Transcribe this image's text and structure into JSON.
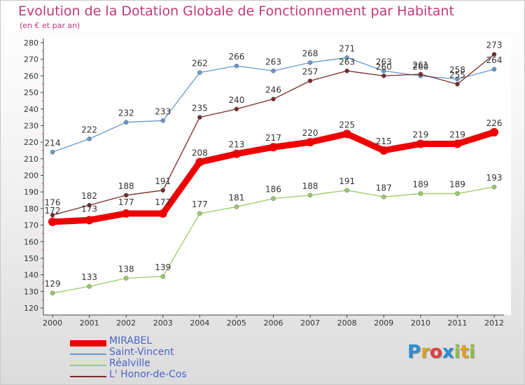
{
  "title": "Evolution de la Dotation Globale de Fonctionnement par Habitant",
  "subtitle": "(en € et par an)",
  "logo": {
    "letters": [
      "P",
      "r",
      "o",
      "x",
      "i",
      "t",
      "i"
    ],
    "colors": [
      "#2a8fd8",
      "#e0a020",
      "#e04040",
      "#2a8fd8",
      "#8fc040",
      "#e0a020",
      "#8fc040"
    ]
  },
  "chart_data": {
    "type": "line",
    "title": "Evolution de la Dotation Globale de Fonctionnement par Habitant",
    "ylabel": "(en € et par an)",
    "xlabel": "",
    "ylim": [
      120,
      280
    ],
    "yticks": [
      120,
      130,
      140,
      150,
      160,
      170,
      180,
      190,
      200,
      210,
      220,
      230,
      240,
      250,
      260,
      270,
      280
    ],
    "categories": [
      "2000",
      "2001",
      "2002",
      "2003",
      "2004",
      "2005",
      "2006",
      "2007",
      "2008",
      "2009",
      "2010",
      "2011",
      "2012"
    ],
    "series": [
      {
        "name": "MIRABEL",
        "color": "#ee0000",
        "values": [
          172,
          173,
          177,
          177,
          208,
          213,
          217,
          220,
          225,
          215,
          219,
          219,
          226
        ]
      },
      {
        "name": "Saint-Vincent",
        "color": "#6699cc",
        "values": [
          214,
          222,
          232,
          233,
          262,
          266,
          263,
          268,
          271,
          263,
          260,
          258,
          264
        ]
      },
      {
        "name": "Réalville",
        "color": "#99cc66",
        "values": [
          129,
          133,
          138,
          139,
          177,
          181,
          186,
          188,
          191,
          187,
          189,
          189,
          193
        ]
      },
      {
        "name": "L' Honor-de-Cos",
        "color": "#7a2a2a",
        "values": [
          176,
          182,
          188,
          191,
          235,
          240,
          246,
          257,
          263,
          260,
          261,
          255,
          273
        ]
      }
    ],
    "labels": {
      "Saint-Vincent": [
        "214",
        "222",
        "232",
        "233",
        "262",
        "266",
        "263",
        "268",
        "271",
        "263",
        "260",
        "258",
        "264"
      ],
      "L' Honor-de-Cos": [
        "176",
        "182",
        "188",
        "191",
        "235",
        "240",
        "246",
        "257",
        "263",
        "260",
        "261",
        "255",
        "273"
      ],
      "Réalville": [
        "129",
        "133",
        "138",
        "139",
        "177",
        "181",
        "186",
        "188",
        "191",
        "187",
        "189",
        "189",
        "193"
      ],
      "MIRABEL": [
        "172",
        "173",
        "177",
        "177",
        "208",
        "213",
        "217",
        "220",
        "225",
        "215",
        "219",
        "219",
        "226"
      ]
    },
    "grid": false,
    "legend": "bottom-left"
  }
}
